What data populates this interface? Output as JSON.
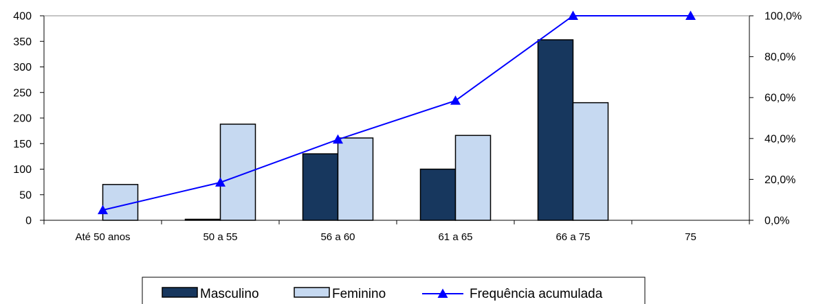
{
  "chart_data": {
    "type": "bar",
    "categories": [
      "Até 50 anos",
      "50 a 55",
      "56 a 60",
      "61 a 65",
      "66 a 75",
      "75"
    ],
    "series": [
      {
        "name": "Masculino",
        "type": "bar",
        "axis": "left",
        "color": "#17375e",
        "values": [
          0,
          2,
          130,
          100,
          353,
          0
        ]
      },
      {
        "name": "Feminino",
        "type": "bar",
        "axis": "left",
        "color": "#c6d9f1",
        "values": [
          70,
          188,
          161,
          166,
          230,
          0
        ]
      },
      {
        "name": "Frequência acumulada",
        "type": "line",
        "axis": "right",
        "color": "#0000ff",
        "marker": "triangle",
        "values": [
          5.0,
          18.5,
          39.5,
          58.5,
          100.0,
          100.0
        ]
      }
    ],
    "ylim_left": [
      0,
      400
    ],
    "yticks_left": [
      "0",
      "50",
      "100",
      "150",
      "200",
      "250",
      "300",
      "350",
      "400"
    ],
    "ylim_right": [
      0,
      100
    ],
    "yticks_right": [
      "0,0%",
      "20,0%",
      "40,0%",
      "60,0%",
      "80,0%",
      "100,0%"
    ],
    "grid": false,
    "legend_position": "bottom"
  }
}
